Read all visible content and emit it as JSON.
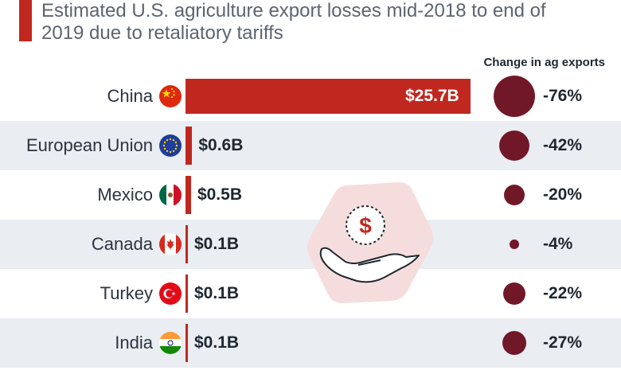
{
  "title": "Estimated U.S. agriculture export losses mid-2018 to end of 2019 due to retaliatory tariffs",
  "column_header": "Change in ag exports",
  "colors": {
    "accent": "#c0281f",
    "dot": "#711828",
    "row_alt": "#eaedf2"
  },
  "icons": {
    "center": "dollar-hand-icon"
  },
  "chart_data": {
    "type": "bar",
    "orientation": "horizontal",
    "categories": [
      "China",
      "European Union",
      "Mexico",
      "Canada",
      "Turkey",
      "India"
    ],
    "values": [
      25.7,
      0.6,
      0.5,
      0.1,
      0.1,
      0.1
    ],
    "value_labels": [
      "$25.7B",
      "$0.6B",
      "$0.5B",
      "$0.1B",
      "$0.1B",
      "$0.1B"
    ],
    "change_pct": [
      -76,
      -42,
      -20,
      -4,
      -22,
      -27
    ],
    "change_labels": [
      "-76%",
      "-42%",
      "-20%",
      "-4%",
      "-22%",
      "-27%"
    ],
    "flags": [
      "china-flag-icon",
      "eu-flag-icon",
      "mexico-flag-icon",
      "canada-flag-icon",
      "turkey-flag-icon",
      "india-flag-icon"
    ]
  }
}
